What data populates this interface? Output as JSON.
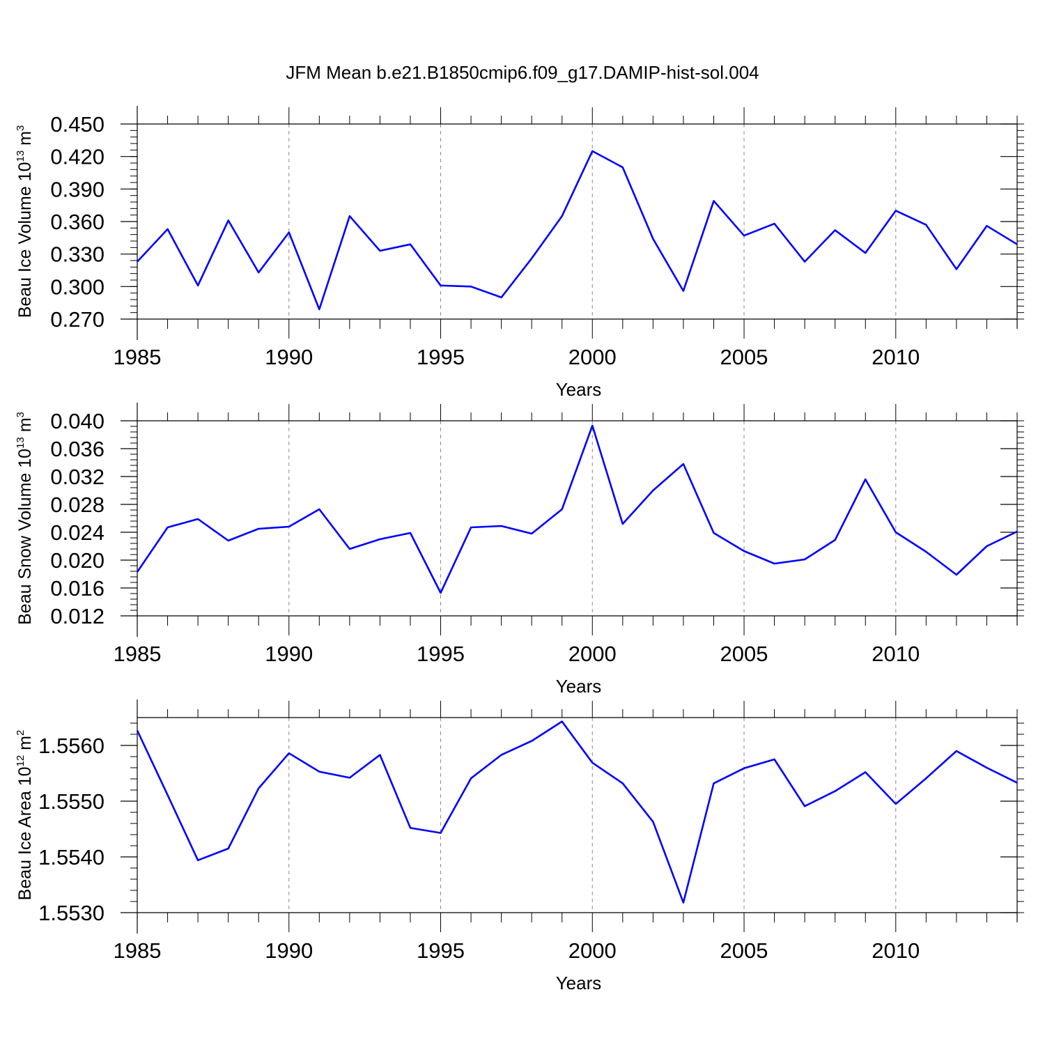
{
  "figure_title": "JFM Mean b.e21.B1850cmip6.f09_g17.DAMIP-hist-sol.004",
  "chart_data": [
    {
      "type": "line",
      "title": "JFM Mean b.e21.B1850cmip6.f09_g17.DAMIP-hist-sol.004",
      "xlabel": "Years",
      "ylabel_main": "Beau Ice Volume 10",
      "ylabel_exp": "13",
      "ylabel_unit": " m",
      "ylabel_unit_exp": "3",
      "xlim": [
        1985,
        2014
      ],
      "ylim": [
        0.27,
        0.45
      ],
      "yticks": [
        "0.270",
        "0.300",
        "0.330",
        "0.360",
        "0.390",
        "0.420",
        "0.450"
      ],
      "xticks": [
        "1985",
        "1990",
        "1995",
        "2000",
        "2005",
        "2010"
      ],
      "grid": "vertical dashed",
      "line_color": "#0000ff",
      "x": [
        1985,
        1986,
        1987,
        1988,
        1989,
        1990,
        1991,
        1992,
        1993,
        1994,
        1995,
        1996,
        1997,
        1998,
        1999,
        2000,
        2001,
        2002,
        2003,
        2004,
        2005,
        2006,
        2007,
        2008,
        2009,
        2010,
        2011,
        2012,
        2013,
        2014
      ],
      "values": [
        0.323,
        0.353,
        0.301,
        0.361,
        0.313,
        0.35,
        0.279,
        0.365,
        0.333,
        0.339,
        0.301,
        0.3,
        0.29,
        0.326,
        0.365,
        0.425,
        0.41,
        0.344,
        0.296,
        0.379,
        0.347,
        0.358,
        0.323,
        0.352,
        0.331,
        0.37,
        0.357,
        0.316,
        0.356,
        0.339
      ]
    },
    {
      "type": "line",
      "xlabel": "Years",
      "ylabel_main": "Beau Snow Volume 10",
      "ylabel_exp": "13",
      "ylabel_unit": " m",
      "ylabel_unit_exp": "3",
      "xlim": [
        1985,
        2014
      ],
      "ylim": [
        0.012,
        0.04
      ],
      "yticks": [
        "0.012",
        "0.016",
        "0.020",
        "0.024",
        "0.028",
        "0.032",
        "0.036",
        "0.040"
      ],
      "xticks": [
        "1985",
        "1990",
        "1995",
        "2000",
        "2005",
        "2010"
      ],
      "grid": "vertical dashed",
      "line_color": "#0000ff",
      "x": [
        1985,
        1986,
        1987,
        1988,
        1989,
        1990,
        1991,
        1992,
        1993,
        1994,
        1995,
        1996,
        1997,
        1998,
        1999,
        2000,
        2001,
        2002,
        2003,
        2004,
        2005,
        2006,
        2007,
        2008,
        2009,
        2010,
        2011,
        2012,
        2013,
        2014
      ],
      "values": [
        0.0183,
        0.0247,
        0.0259,
        0.0228,
        0.0245,
        0.0248,
        0.0273,
        0.0216,
        0.023,
        0.0239,
        0.0153,
        0.0247,
        0.0249,
        0.0238,
        0.0273,
        0.0393,
        0.0252,
        0.03,
        0.0338,
        0.0239,
        0.0213,
        0.0195,
        0.0201,
        0.0229,
        0.0316,
        0.024,
        0.0212,
        0.0179,
        0.022,
        0.0241
      ]
    },
    {
      "type": "line",
      "xlabel": "Years",
      "ylabel_main": "Beau Ice Area 10",
      "ylabel_exp": "12",
      "ylabel_unit": " m",
      "ylabel_unit_exp": "2",
      "xlim": [
        1985,
        2014
      ],
      "ylim": [
        1.553,
        1.5565
      ],
      "yticks": [
        "1.5530",
        "1.5540",
        "1.5550",
        "1.5560"
      ],
      "xticks": [
        "1985",
        "1990",
        "1995",
        "2000",
        "2005",
        "2010"
      ],
      "grid": "vertical dashed",
      "line_color": "#0000ff",
      "x": [
        1985,
        1986,
        1987,
        1988,
        1989,
        1990,
        1991,
        1992,
        1993,
        1994,
        1995,
        1996,
        1997,
        1998,
        1999,
        2000,
        2001,
        2002,
        2003,
        2004,
        2005,
        2006,
        2007,
        2008,
        2009,
        2010,
        2011,
        2012,
        2013,
        2014
      ],
      "values": [
        1.55627,
        1.55511,
        1.55394,
        1.55415,
        1.55523,
        1.55586,
        1.55553,
        1.55542,
        1.55583,
        1.55452,
        1.55443,
        1.55541,
        1.55583,
        1.55608,
        1.55643,
        1.55569,
        1.55532,
        1.55463,
        1.55318,
        1.55532,
        1.55559,
        1.55575,
        1.55491,
        1.55518,
        1.55552,
        1.55495,
        1.55541,
        1.5559,
        1.5556,
        1.55533
      ]
    }
  ]
}
